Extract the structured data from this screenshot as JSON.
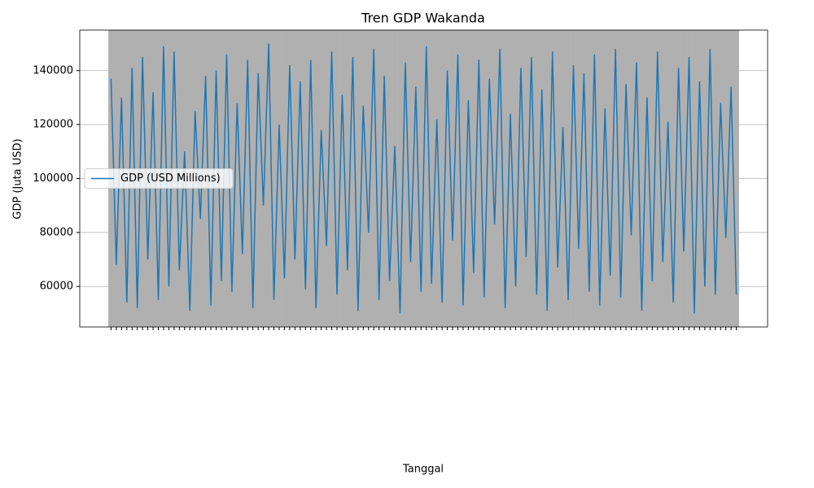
{
  "chart_data": {
    "type": "line",
    "title": "Tren GDP Wakanda",
    "x_label": "Tanggal",
    "y_label": "GDP (Juta USD)",
    "categories": [
      null,
      null,
      null,
      null,
      null,
      null,
      null,
      null,
      null,
      null,
      null,
      null,
      null,
      null,
      null,
      null,
      null,
      null,
      null,
      null,
      null,
      null,
      null,
      null,
      null,
      null,
      null,
      null,
      null,
      null,
      null,
      null,
      null,
      null,
      null,
      null,
      null,
      null,
      null,
      null,
      null,
      null,
      null,
      null,
      null,
      null,
      null,
      null,
      null,
      null,
      null,
      null,
      null,
      null,
      null,
      null,
      null,
      null,
      null,
      null,
      null,
      null,
      null,
      null,
      null,
      null,
      null,
      null,
      null,
      null,
      null,
      null,
      null,
      null,
      null,
      null,
      null,
      null,
      null,
      null,
      null,
      null,
      null,
      null,
      null,
      null,
      null,
      null,
      null,
      null,
      null,
      null,
      null,
      null,
      null,
      null,
      null,
      null,
      null,
      null,
      null,
      null,
      null,
      null,
      null,
      null,
      null,
      null,
      null,
      null,
      null,
      null,
      null,
      null,
      null,
      null,
      null,
      null,
      null,
      null
    ],
    "series": [
      {
        "name": "GDP (USD Millions)",
        "color": "#1f77b4",
        "values": [
          137000,
          68000,
          130000,
          54000,
          141000,
          52000,
          145000,
          70000,
          132000,
          55000,
          149000,
          60000,
          147000,
          66000,
          110000,
          51000,
          125000,
          85000,
          138000,
          53000,
          140000,
          62000,
          146000,
          58000,
          128000,
          72000,
          144000,
          52000,
          139000,
          90000,
          150000,
          55000,
          120000,
          63000,
          142000,
          70000,
          136000,
          59000,
          144000,
          52000,
          118000,
          75000,
          147000,
          57000,
          131000,
          66000,
          145000,
          51000,
          127000,
          80000,
          148000,
          55000,
          138000,
          62000,
          112000,
          50000,
          143000,
          69000,
          134000,
          58000,
          149000,
          61000,
          122000,
          54000,
          140000,
          77000,
          146000,
          53000,
          129000,
          65000,
          144000,
          56000,
          137000,
          83000,
          148000,
          52000,
          124000,
          60000,
          141000,
          71000,
          145000,
          57000,
          133000,
          51000,
          147000,
          67000,
          119000,
          55000,
          142000,
          74000,
          139000,
          58000,
          146000,
          53000,
          126000,
          64000,
          148000,
          56000,
          135000,
          79000,
          143000,
          51000,
          130000,
          62000,
          147000,
          69000,
          121000,
          54000,
          141000,
          73000,
          145000,
          50000,
          136000,
          60000,
          148000,
          57000,
          128000,
          78000,
          134000,
          57000
        ]
      }
    ],
    "ylim": [
      45000,
      155000
    ],
    "yticks": [
      60000,
      80000,
      100000,
      120000,
      140000
    ],
    "grid": true,
    "legend": "center left"
  }
}
